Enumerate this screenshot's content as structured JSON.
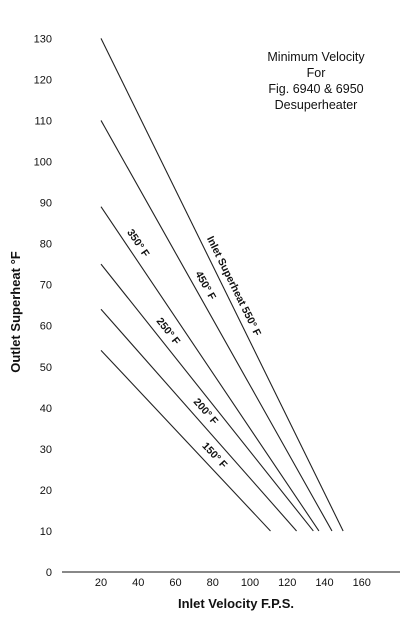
{
  "chart_data": {
    "type": "line",
    "title_lines": [
      "Minimum Velocity",
      "For",
      "Fig. 6940 & 6950",
      "Desuperheater"
    ],
    "xlabel": "Inlet Velocity F.P.S.",
    "ylabel": "Outlet Superheat °F",
    "xlim": [
      0,
      160
    ],
    "ylim": [
      0,
      135
    ],
    "x_ticks": [
      20,
      40,
      60,
      80,
      100,
      120,
      140,
      160
    ],
    "y_ticks": [
      0,
      10,
      20,
      30,
      40,
      50,
      60,
      70,
      80,
      90,
      100,
      110,
      120,
      130
    ],
    "grid": false,
    "series": [
      {
        "name": "Inlet Superheat 550° F",
        "x": [
          20,
          150
        ],
        "y": [
          130,
          10
        ]
      },
      {
        "name": "450° F",
        "x": [
          20,
          144
        ],
        "y": [
          110,
          10
        ]
      },
      {
        "name": "350° F",
        "x": [
          20,
          137
        ],
        "y": [
          89,
          10
        ]
      },
      {
        "name": "250° F",
        "x": [
          20,
          134
        ],
        "y": [
          75,
          10
        ]
      },
      {
        "name": "200° F",
        "x": [
          20,
          125
        ],
        "y": [
          64,
          10
        ]
      },
      {
        "name": "150° F",
        "x": [
          20,
          111
        ],
        "y": [
          54,
          10
        ]
      }
    ]
  }
}
